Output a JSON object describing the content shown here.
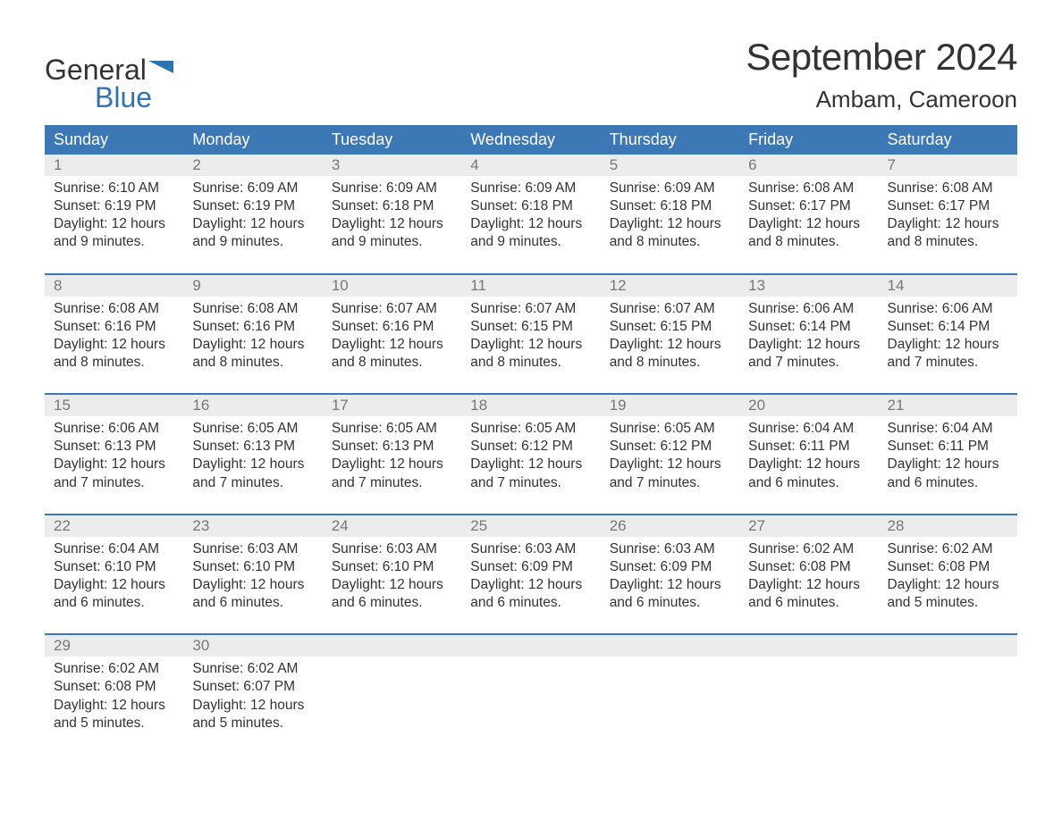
{
  "brand": {
    "line1": "General",
    "line2": "Blue",
    "logo_color": "#2e74b5",
    "text_color": "#333333"
  },
  "title": "September 2024",
  "location": "Ambam, Cameroon",
  "colors": {
    "header_bg": "#3b78b5",
    "header_text": "#ffffff",
    "daynum_bg": "#ececec",
    "daynum_text": "#777777",
    "body_text": "#333333",
    "week_divider": "#3b78b5",
    "page_bg": "#ffffff"
  },
  "typography": {
    "title_fontsize": 42,
    "location_fontsize": 26,
    "header_fontsize": 18,
    "daynum_fontsize": 17,
    "cell_fontsize": 15.5
  },
  "day_labels": [
    "Sunday",
    "Monday",
    "Tuesday",
    "Wednesday",
    "Thursday",
    "Friday",
    "Saturday"
  ],
  "labels": {
    "sunrise": "Sunrise:",
    "sunset": "Sunset:",
    "daylight": "Daylight:"
  },
  "weeks": [
    [
      {
        "n": "1",
        "sunrise": "6:10 AM",
        "sunset": "6:19 PM",
        "daylight": "12 hours and 9 minutes."
      },
      {
        "n": "2",
        "sunrise": "6:09 AM",
        "sunset": "6:19 PM",
        "daylight": "12 hours and 9 minutes."
      },
      {
        "n": "3",
        "sunrise": "6:09 AM",
        "sunset": "6:18 PM",
        "daylight": "12 hours and 9 minutes."
      },
      {
        "n": "4",
        "sunrise": "6:09 AM",
        "sunset": "6:18 PM",
        "daylight": "12 hours and 9 minutes."
      },
      {
        "n": "5",
        "sunrise": "6:09 AM",
        "sunset": "6:18 PM",
        "daylight": "12 hours and 8 minutes."
      },
      {
        "n": "6",
        "sunrise": "6:08 AM",
        "sunset": "6:17 PM",
        "daylight": "12 hours and 8 minutes."
      },
      {
        "n": "7",
        "sunrise": "6:08 AM",
        "sunset": "6:17 PM",
        "daylight": "12 hours and 8 minutes."
      }
    ],
    [
      {
        "n": "8",
        "sunrise": "6:08 AM",
        "sunset": "6:16 PM",
        "daylight": "12 hours and 8 minutes."
      },
      {
        "n": "9",
        "sunrise": "6:08 AM",
        "sunset": "6:16 PM",
        "daylight": "12 hours and 8 minutes."
      },
      {
        "n": "10",
        "sunrise": "6:07 AM",
        "sunset": "6:16 PM",
        "daylight": "12 hours and 8 minutes."
      },
      {
        "n": "11",
        "sunrise": "6:07 AM",
        "sunset": "6:15 PM",
        "daylight": "12 hours and 8 minutes."
      },
      {
        "n": "12",
        "sunrise": "6:07 AM",
        "sunset": "6:15 PM",
        "daylight": "12 hours and 8 minutes."
      },
      {
        "n": "13",
        "sunrise": "6:06 AM",
        "sunset": "6:14 PM",
        "daylight": "12 hours and 7 minutes."
      },
      {
        "n": "14",
        "sunrise": "6:06 AM",
        "sunset": "6:14 PM",
        "daylight": "12 hours and 7 minutes."
      }
    ],
    [
      {
        "n": "15",
        "sunrise": "6:06 AM",
        "sunset": "6:13 PM",
        "daylight": "12 hours and 7 minutes."
      },
      {
        "n": "16",
        "sunrise": "6:05 AM",
        "sunset": "6:13 PM",
        "daylight": "12 hours and 7 minutes."
      },
      {
        "n": "17",
        "sunrise": "6:05 AM",
        "sunset": "6:13 PM",
        "daylight": "12 hours and 7 minutes."
      },
      {
        "n": "18",
        "sunrise": "6:05 AM",
        "sunset": "6:12 PM",
        "daylight": "12 hours and 7 minutes."
      },
      {
        "n": "19",
        "sunrise": "6:05 AM",
        "sunset": "6:12 PM",
        "daylight": "12 hours and 7 minutes."
      },
      {
        "n": "20",
        "sunrise": "6:04 AM",
        "sunset": "6:11 PM",
        "daylight": "12 hours and 6 minutes."
      },
      {
        "n": "21",
        "sunrise": "6:04 AM",
        "sunset": "6:11 PM",
        "daylight": "12 hours and 6 minutes."
      }
    ],
    [
      {
        "n": "22",
        "sunrise": "6:04 AM",
        "sunset": "6:10 PM",
        "daylight": "12 hours and 6 minutes."
      },
      {
        "n": "23",
        "sunrise": "6:03 AM",
        "sunset": "6:10 PM",
        "daylight": "12 hours and 6 minutes."
      },
      {
        "n": "24",
        "sunrise": "6:03 AM",
        "sunset": "6:10 PM",
        "daylight": "12 hours and 6 minutes."
      },
      {
        "n": "25",
        "sunrise": "6:03 AM",
        "sunset": "6:09 PM",
        "daylight": "12 hours and 6 minutes."
      },
      {
        "n": "26",
        "sunrise": "6:03 AM",
        "sunset": "6:09 PM",
        "daylight": "12 hours and 6 minutes."
      },
      {
        "n": "27",
        "sunrise": "6:02 AM",
        "sunset": "6:08 PM",
        "daylight": "12 hours and 6 minutes."
      },
      {
        "n": "28",
        "sunrise": "6:02 AM",
        "sunset": "6:08 PM",
        "daylight": "12 hours and 5 minutes."
      }
    ],
    [
      {
        "n": "29",
        "sunrise": "6:02 AM",
        "sunset": "6:08 PM",
        "daylight": "12 hours and 5 minutes."
      },
      {
        "n": "30",
        "sunrise": "6:02 AM",
        "sunset": "6:07 PM",
        "daylight": "12 hours and 5 minutes."
      },
      null,
      null,
      null,
      null,
      null
    ]
  ]
}
